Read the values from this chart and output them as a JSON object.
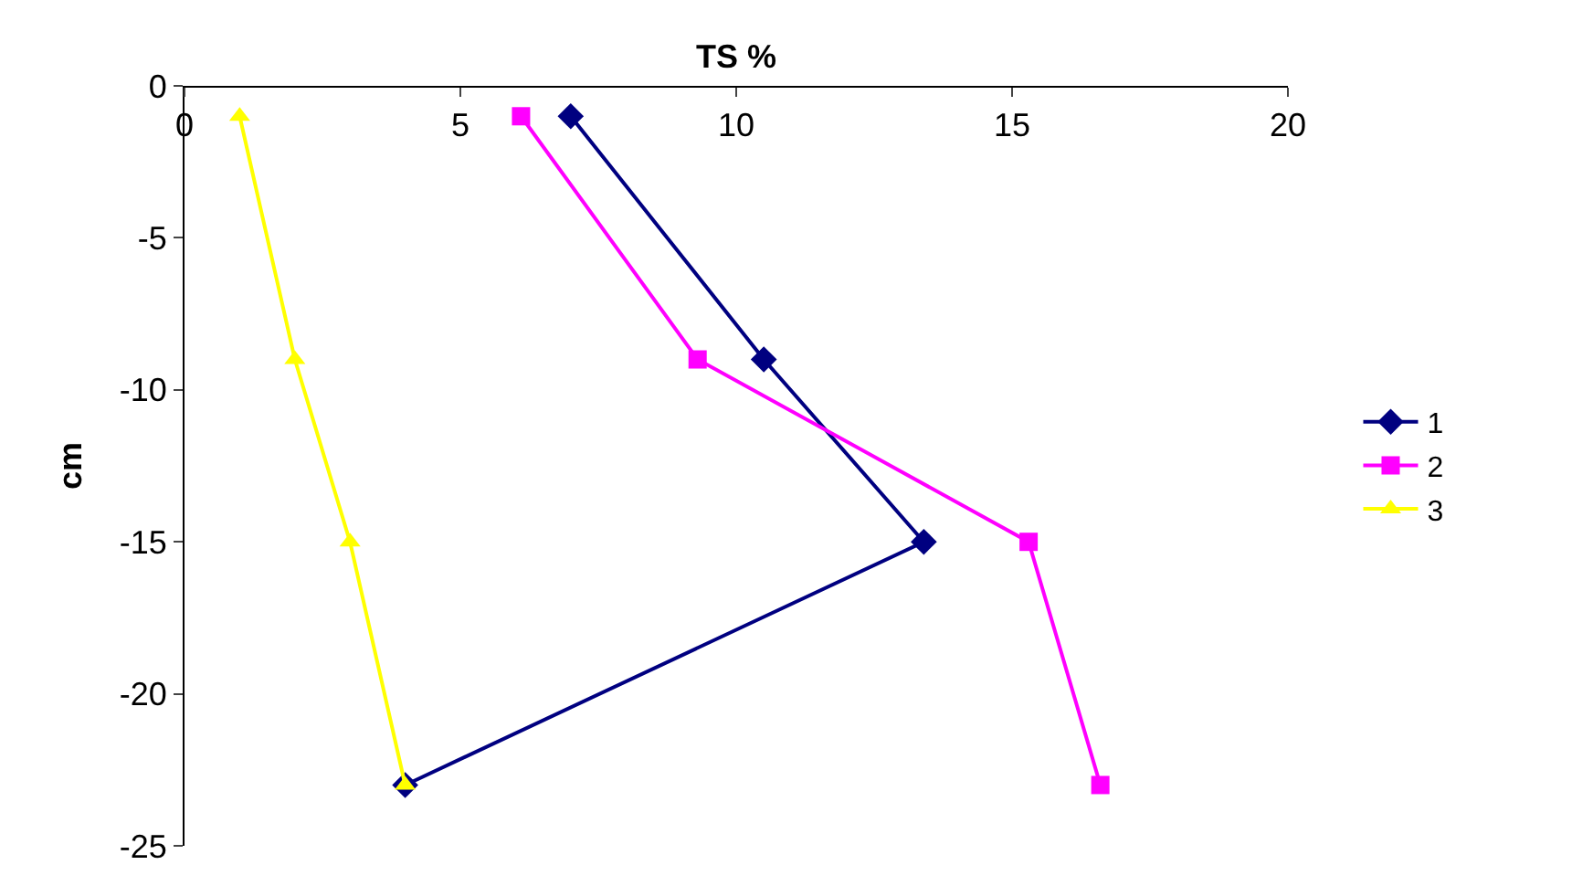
{
  "chart_data": {
    "type": "line",
    "xlabel": "TS %",
    "ylabel": "cm",
    "xlim": [
      0,
      20
    ],
    "xticks": [
      0,
      5,
      10,
      15,
      20
    ],
    "ylim": [
      -25,
      0
    ],
    "yticks": [
      -25,
      -20,
      -15,
      -10,
      -5,
      0
    ],
    "legend": "right",
    "line_style": "solid",
    "series": [
      {
        "name": "1",
        "color": "#000080",
        "marker": "diamond",
        "x": [
          7.0,
          10.5,
          13.4,
          4.0
        ],
        "values": [
          -1,
          -9,
          -15,
          -23
        ]
      },
      {
        "name": "2",
        "color": "#ff00ff",
        "marker": "square",
        "x": [
          6.1,
          9.3,
          15.3,
          16.6
        ],
        "values": [
          -1,
          -9,
          -15,
          -23
        ]
      },
      {
        "name": "3",
        "color": "#ffff00",
        "marker": "triangle",
        "x": [
          1.0,
          2.0,
          3.0,
          4.0
        ],
        "values": [
          -1,
          -9,
          -15,
          -23
        ]
      }
    ]
  }
}
